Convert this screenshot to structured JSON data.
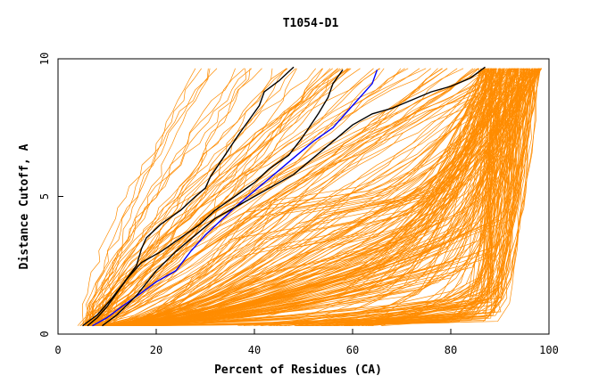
{
  "chart_data": {
    "type": "line",
    "title": "T1054-D1",
    "xlabel": "Percent of Residues (CA)",
    "ylabel": "Distance Cutoff, A",
    "xlim": [
      0,
      100
    ],
    "ylim": [
      0,
      10
    ],
    "x_ticks": [
      0,
      20,
      40,
      60,
      80,
      100
    ],
    "y_ticks": [
      0,
      5,
      10
    ],
    "grid": false,
    "legend": "none",
    "colors": {
      "background_models": "#ff8c00",
      "highlight_black": "#000000",
      "highlight_blue": "#0000ff"
    },
    "highlight_series": [
      {
        "color": "#000000",
        "x": [
          5,
          8,
          11,
          14,
          16,
          17,
          18,
          21,
          25,
          28,
          30,
          31,
          34,
          37,
          39,
          41,
          42,
          45,
          48
        ],
        "y": [
          0.3,
          0.7,
          1.3,
          2.0,
          2.5,
          3.1,
          3.5,
          4.0,
          4.5,
          5.0,
          5.3,
          5.7,
          6.5,
          7.3,
          7.8,
          8.3,
          8.8,
          9.2,
          9.7
        ]
      },
      {
        "color": "#000000",
        "x": [
          6,
          8,
          10,
          12,
          14,
          17,
          21,
          25,
          29,
          32,
          36,
          40,
          43,
          47,
          50,
          53,
          55,
          56,
          58
        ],
        "y": [
          0.3,
          0.6,
          1.0,
          1.5,
          2.0,
          2.6,
          3.0,
          3.5,
          4.0,
          4.5,
          5.0,
          5.5,
          6.0,
          6.5,
          7.2,
          8.0,
          8.6,
          9.1,
          9.6
        ]
      },
      {
        "color": "#0000ff",
        "x": [
          7,
          10,
          13,
          17,
          20,
          24,
          27,
          30,
          33,
          36,
          40,
          44,
          48,
          52,
          56,
          58,
          60,
          62,
          64,
          65
        ],
        "y": [
          0.3,
          0.6,
          1.0,
          1.5,
          1.9,
          2.3,
          3.0,
          3.6,
          4.1,
          4.6,
          5.2,
          5.8,
          6.4,
          7.0,
          7.5,
          7.9,
          8.3,
          8.7,
          9.1,
          9.6
        ]
      },
      {
        "color": "#000000",
        "x": [
          9,
          12,
          16,
          20,
          24,
          28,
          32,
          36,
          40,
          44,
          48,
          52,
          56,
          60,
          64,
          68,
          72,
          76,
          80,
          84,
          87
        ],
        "y": [
          0.3,
          0.7,
          1.4,
          2.3,
          3.0,
          3.6,
          4.2,
          4.6,
          5.0,
          5.4,
          5.8,
          6.4,
          7.0,
          7.6,
          8.0,
          8.2,
          8.5,
          8.8,
          9.0,
          9.3,
          9.7
        ]
      }
    ]
  }
}
